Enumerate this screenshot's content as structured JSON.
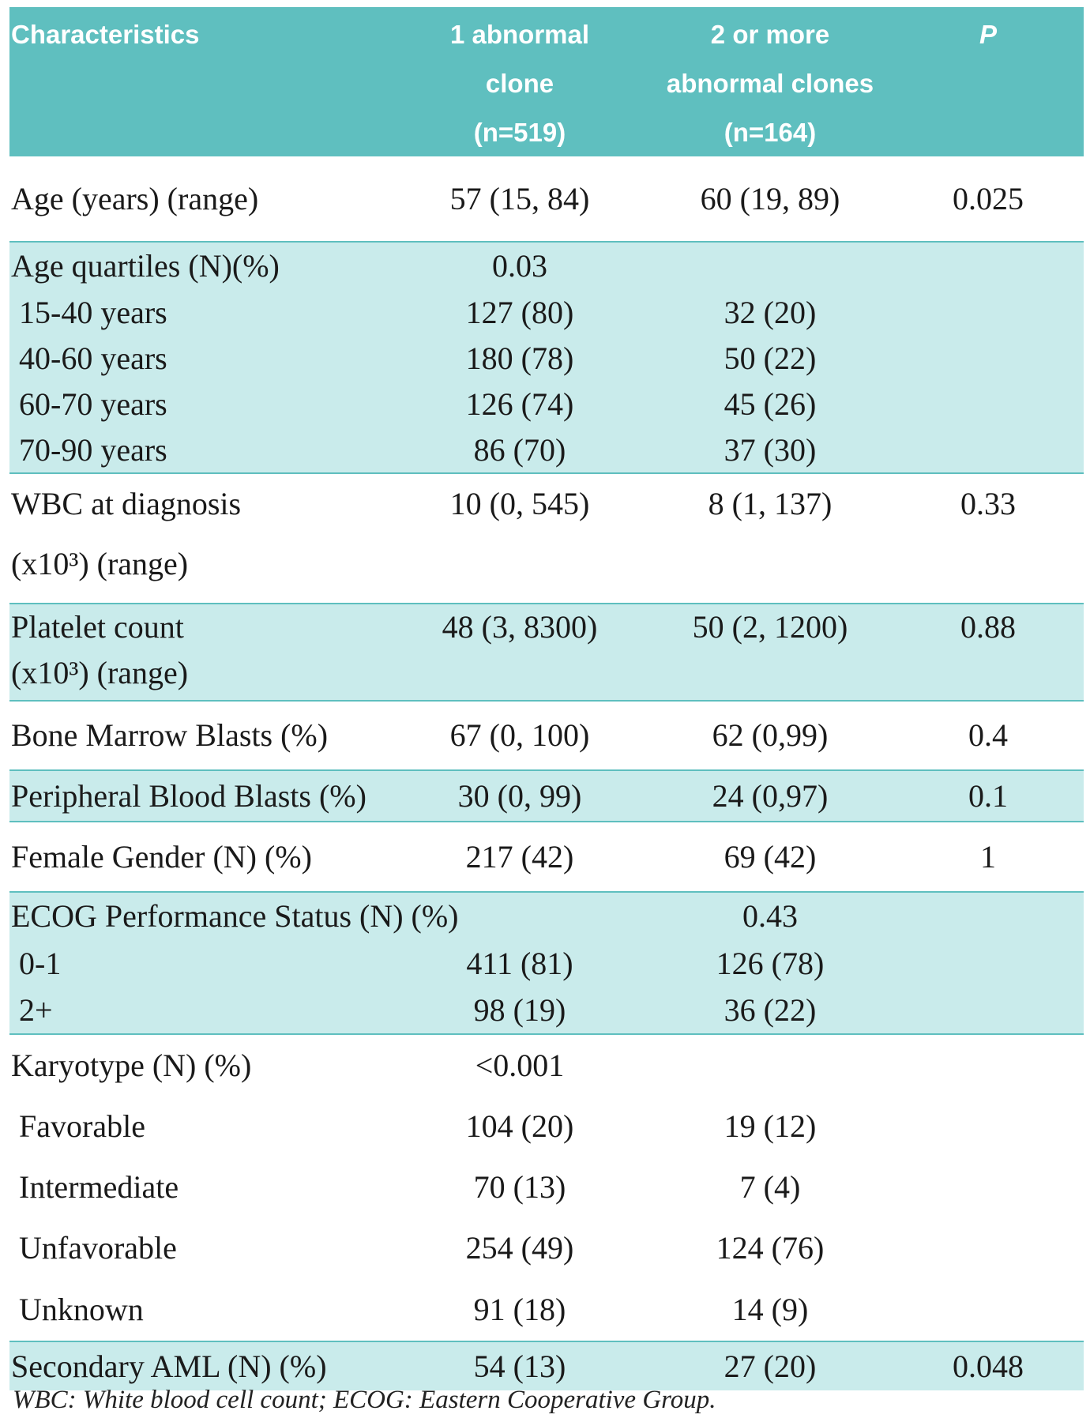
{
  "header": {
    "columns": [
      "Characteristics",
      "1 abnormal\nclone\n(n=519)",
      "2 or more\nabnormal clones\n(n=164)",
      "P"
    ]
  },
  "groups": [
    {
      "shaded": false,
      "rows": [
        {
          "label": "Age (years) (range)",
          "col1": "57 (15, 84)",
          "col2": "60 (19, 89)",
          "p": "0.025"
        }
      ]
    },
    {
      "shaded": true,
      "rows": [
        {
          "label": "Age quartiles (N)(%)",
          "col1": "0.03"
        },
        {
          "label": "15-40 years",
          "col1": "127 (80)",
          "col2": "32 (20)"
        },
        {
          "label": "40-60 years",
          "col1": "180 (78)",
          "col2": "50 (22)"
        },
        {
          "label": "60-70 years",
          "col1": "126 (74)",
          "col2": "45 (26)"
        },
        {
          "label": "70-90 years",
          "col1": "86 (70)",
          "col2": "37 (30)"
        }
      ]
    },
    {
      "shaded": false,
      "rows": [
        {
          "label": "WBC at diagnosis\n(x10³) (range)",
          "col1": "10 (0, 545)",
          "col2": "8 (1, 137)",
          "p": "0.33"
        }
      ]
    },
    {
      "shaded": true,
      "rows": [
        {
          "label": "Platelet count\n(x10³) (range)",
          "col1": "48 (3, 8300)",
          "col2": "50 (2, 1200)",
          "p": "0.88"
        }
      ]
    },
    {
      "shaded": false,
      "rows": [
        {
          "label": "Bone Marrow Blasts (%)",
          "col1": "67 (0, 100)",
          "col2": "62 (0,99)",
          "p": "0.4"
        }
      ]
    },
    {
      "shaded": true,
      "rows": [
        {
          "label": "Peripheral Blood Blasts (%)",
          "col1": "30 (0, 99)",
          "col2": "24 (0,97)",
          "p": "0.1"
        }
      ]
    },
    {
      "shaded": false,
      "rows": [
        {
          "label": "Female Gender (N) (%)",
          "col1": "217 (42)",
          "col2": "69 (42)",
          "p": "1"
        }
      ]
    },
    {
      "shaded": true,
      "rows": [
        {
          "label": "ECOG Performance Status (N) (%)",
          "col2": "0.43"
        },
        {
          "label": "0-1",
          "col1": "411 (81)",
          "col2": "126 (78)"
        },
        {
          "label": "2+",
          "col1": "98 (19)",
          "col2": "36 (22)"
        }
      ]
    },
    {
      "shaded": false,
      "rows": [
        {
          "label": "Karyotype (N) (%)",
          "col1": "<0.001"
        },
        {
          "label": "Favorable",
          "col1": "104 (20)",
          "col2": "19 (12)"
        },
        {
          "label": "Intermediate",
          "col1": "70 (13)",
          "col2": "7 (4)"
        },
        {
          "label": "Unfavorable",
          "col1": "254 (49)",
          "col2": "124 (76)"
        },
        {
          "label": "Unknown",
          "col1": "91 (18)",
          "col2": "14 (9)"
        }
      ]
    },
    {
      "shaded": true,
      "rows": [
        {
          "label": "Secondary AML (N) (%)",
          "col1": "54 (13)",
          "col2": "27 (20)",
          "p": "0.048"
        }
      ]
    }
  ],
  "footnote": "WBC: White blood cell count; ECOG: Eastern Cooperative Group."
}
